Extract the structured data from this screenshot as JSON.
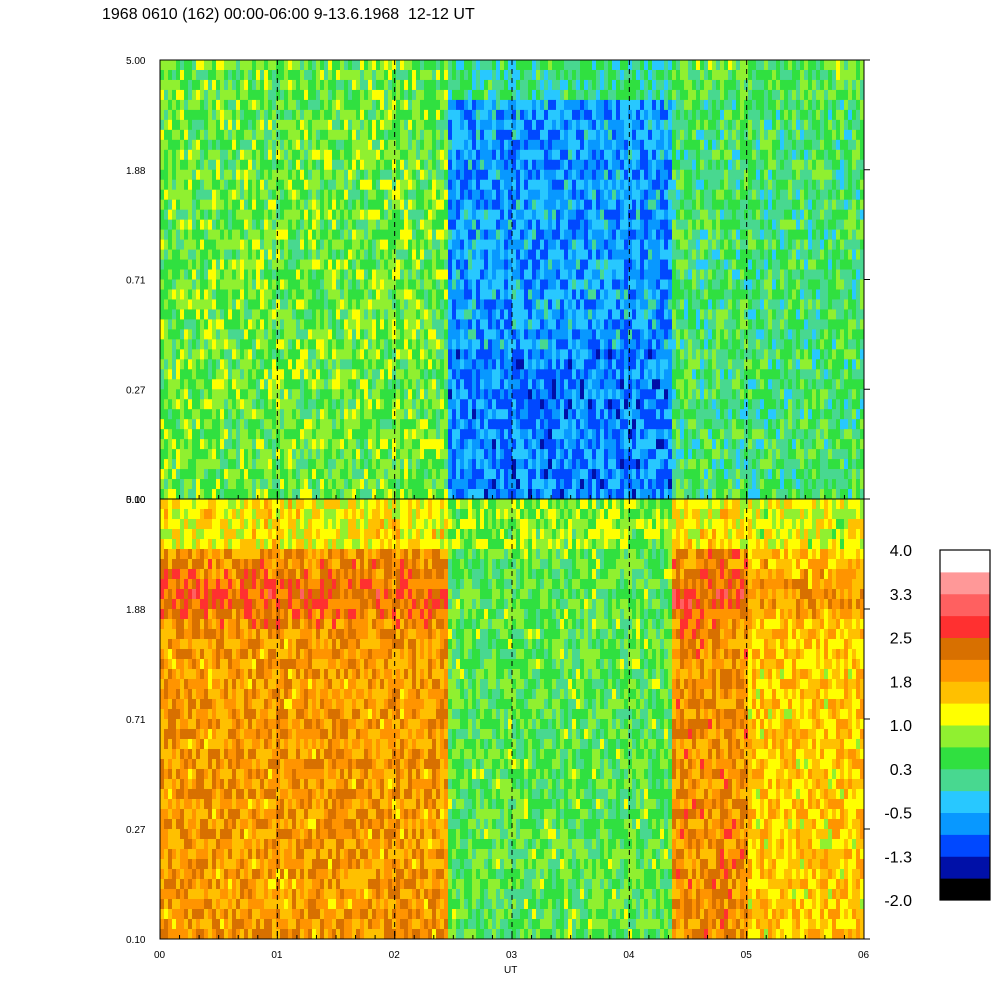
{
  "title": "1968 0610 (162) 00:00-06:00 9-13.6.1968  12-12 UT",
  "chart_data": [
    {
      "type": "heatmap",
      "panel": "top",
      "x_ticks": [
        "00",
        "01",
        "02",
        "03",
        "04",
        "05",
        "06"
      ],
      "x_range": [
        0,
        6
      ],
      "y_ticks": [
        "5.00",
        "1.88",
        "0.71",
        "0.27",
        "0.10"
      ],
      "y_range": [
        0.1,
        5.0
      ],
      "y_scale": "log",
      "grid": "dashed vertical at each hour",
      "dominant_levels": [
        {
          "x_start": 0.0,
          "x_end": 2.45,
          "level": 0.6
        },
        {
          "x_start": 2.45,
          "x_end": 4.37,
          "level": -0.6
        },
        {
          "x_start": 4.37,
          "x_end": 6.0,
          "level": 0.3
        }
      ]
    },
    {
      "type": "heatmap",
      "panel": "bottom",
      "x_ticks": [
        "00",
        "01",
        "02",
        "03",
        "04",
        "05",
        "06"
      ],
      "x_range": [
        0,
        6
      ],
      "y_ticks": [
        "5.00",
        "1.88",
        "0.71",
        "0.27",
        "0.10"
      ],
      "y_range": [
        0.1,
        5.0
      ],
      "y_scale": "log",
      "xlabel": "UT",
      "grid": "dashed vertical at each hour",
      "dominant_levels": [
        {
          "x_start": 0.0,
          "x_end": 2.45,
          "level": 1.9
        },
        {
          "x_start": 2.45,
          "x_end": 4.37,
          "level": 0.5
        },
        {
          "x_start": 4.37,
          "x_end": 5.0,
          "level": 2.0
        },
        {
          "x_start": 5.0,
          "x_end": 6.0,
          "level": 1.5
        }
      ]
    }
  ],
  "colorbar": {
    "labels": [
      "4.0",
      "3.3",
      "2.5",
      "1.8",
      "1.0",
      "0.3",
      "-0.5",
      "-1.3",
      "-2.0"
    ],
    "range": [
      -2.0,
      4.0
    ],
    "colors": [
      "#000000",
      "#0010a8",
      "#0048ff",
      "#0898ff",
      "#28c8ff",
      "#48d890",
      "#30e040",
      "#90f030",
      "#ffff00",
      "#ffc000",
      "#ff9400",
      "#d87000",
      "#ff3030",
      "#ff6060",
      "#ff9898",
      "#ffffff"
    ]
  }
}
